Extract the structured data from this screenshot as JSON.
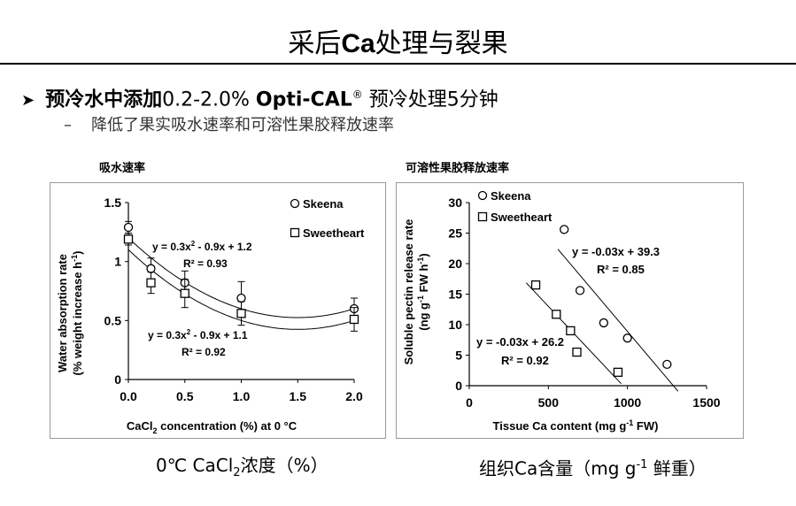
{
  "slide": {
    "title_pre": "采后",
    "title_bold": "Ca",
    "title_post": "处理与裂果",
    "bullet_cn": "预冷水中添加",
    "bullet_range": "0.2-2.0% ",
    "bullet_product": "Opti-CAL",
    "bullet_reg": "®",
    "bullet_tail": " 预冷处理5分钟",
    "sub_dash": "–",
    "sub_text": "降低了果实吸水速率和可溶性果胶释放速率"
  },
  "captions": {
    "left_pre": "0℃  CaCl",
    "left_sub": "2",
    "left_post": "浓度（%）",
    "right_pre": "组织Ca含量（mg g",
    "right_sup": "-1",
    "right_post": " 鲜重）"
  },
  "colors": {
    "marker_stroke": "#000000",
    "marker_fill": "#ffffff",
    "panel_border": "#999999"
  },
  "chart_data": [
    {
      "type": "scatter",
      "heading": "吸水速率",
      "xlabel_pre": "CaCl",
      "xlabel_sub": "2",
      "xlabel_post": " concentration (%) at 0 °C",
      "ylabel_line1": "Water absorption rate",
      "ylabel_line2_pre": "(% weight increase h",
      "ylabel_line2_sup": "-1",
      "ylabel_line2_post": ")",
      "xlim": [
        0,
        2.0
      ],
      "ylim": [
        0,
        1.5
      ],
      "xticks": [
        "0.0",
        "0.5",
        "1.0",
        "1.5",
        "2.0"
      ],
      "yticks": [
        "0",
        "0.5",
        "1",
        "1.5"
      ],
      "grid": false,
      "legend_position": "top-right",
      "series": [
        {
          "name": "Skeena",
          "marker": "circle",
          "x": [
            0,
            0.2,
            0.5,
            1.0,
            2.0
          ],
          "y": [
            1.29,
            0.94,
            0.82,
            0.69,
            0.6
          ],
          "err": [
            0.05,
            0.09,
            0.1,
            0.14,
            0.09
          ]
        },
        {
          "name": "Sweetheart",
          "marker": "square",
          "x": [
            0,
            0.2,
            0.5,
            1.0,
            2.0
          ],
          "y": [
            1.19,
            0.82,
            0.73,
            0.56,
            0.51
          ],
          "err": [
            0.05,
            0.09,
            0.12,
            0.1,
            0.1
          ]
        }
      ],
      "fits": [
        {
          "series": "Skeena",
          "kind": "quadratic",
          "a": 0.3,
          "b": -0.9,
          "c": 1.2,
          "equation": "y = 0.3x² - 0.9x + 1.2",
          "r2": "R² = 0.93"
        },
        {
          "series": "Sweetheart",
          "kind": "quadratic",
          "a": 0.3,
          "b": -0.9,
          "c": 1.1,
          "equation": "y = 0.3x² - 0.9x + 1.1",
          "r2": "R² = 0.92"
        }
      ]
    },
    {
      "type": "scatter",
      "heading": "可溶性果胶释放速率",
      "xlabel_pre": "Tissue Ca content (mg g",
      "xlabel_sup": "-1",
      "xlabel_post": " FW)",
      "ylabel_line1": "Soluble pectin release rate",
      "ylabel_line2_pre": "(ng g",
      "ylabel_line2_sup": "-1",
      "ylabel_line2_mid": " FW h",
      "ylabel_line2_sup2": "-1",
      "ylabel_line2_post": ")",
      "xlim": [
        0,
        1500
      ],
      "ylim": [
        0,
        30
      ],
      "xticks": [
        "0",
        "500",
        "1000",
        "1500"
      ],
      "yticks": [
        "0",
        "5",
        "10",
        "15",
        "20",
        "25",
        "30"
      ],
      "grid": false,
      "legend_position": "top-left",
      "series": [
        {
          "name": "Skeena",
          "marker": "circle",
          "x": [
            600,
            700,
            850,
            1000,
            1250
          ],
          "y": [
            25.6,
            15.6,
            10.3,
            7.8,
            3.5
          ]
        },
        {
          "name": "Sweetheart",
          "marker": "square",
          "x": [
            420,
            550,
            640,
            680,
            940
          ],
          "y": [
            16.5,
            11.7,
            9.0,
            5.5,
            2.2
          ]
        }
      ],
      "fits": [
        {
          "series": "Skeena",
          "kind": "linear",
          "x_range": [
            560,
            1320
          ],
          "equation": "y = -0.03x + 39.3",
          "r2": "R² = 0.85"
        },
        {
          "series": "Sweetheart",
          "kind": "linear",
          "x_range": [
            360,
            960
          ],
          "equation": "y = -0.03x + 26.2",
          "r2": "R² = 0.92"
        }
      ]
    }
  ]
}
